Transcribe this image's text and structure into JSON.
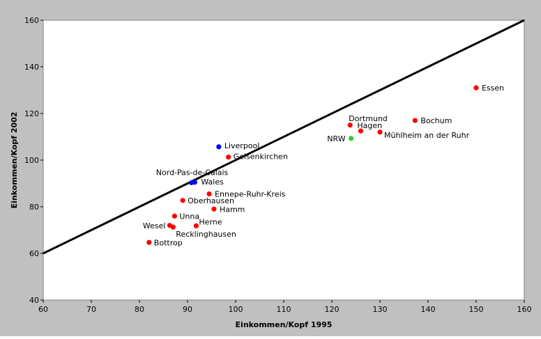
{
  "chart_data": {
    "type": "scatter",
    "xlabel": "Einkommen/Kopf 1995",
    "ylabel": "Einkommen/Kopf 2002",
    "xlim": [
      60,
      160
    ],
    "ylim": [
      40,
      160
    ],
    "xticks": [
      60,
      70,
      80,
      90,
      100,
      110,
      120,
      130,
      140,
      150,
      160
    ],
    "yticks": [
      40,
      60,
      80,
      100,
      120,
      140,
      160
    ],
    "grid": false,
    "colors": {
      "background": "#c0c0c0",
      "plot_area": "#ffffff",
      "red": "#ff0000",
      "blue": "#0000ff",
      "green": "#33cc33",
      "line": "#000000"
    },
    "reference_line": {
      "x": [
        60,
        160
      ],
      "y": [
        60,
        160
      ]
    },
    "points": [
      {
        "label": "Essen",
        "x": 150,
        "y": 131,
        "color": "red"
      },
      {
        "label": "Bochum",
        "x": 137.3,
        "y": 117,
        "color": "red"
      },
      {
        "label": "Dortmund",
        "x": 123.8,
        "y": 115,
        "color": "red"
      },
      {
        "label": "Hagen",
        "x": 126,
        "y": 112.5,
        "color": "red"
      },
      {
        "label": "Mühlheim an der Ruhr",
        "x": 130,
        "y": 112,
        "color": "red"
      },
      {
        "label": "NRW",
        "x": 124,
        "y": 109.3,
        "color": "green"
      },
      {
        "label": "Liverpool",
        "x": 96.5,
        "y": 105.7,
        "color": "blue"
      },
      {
        "label": "Gelsenkirchen",
        "x": 98.5,
        "y": 101.3,
        "color": "red"
      },
      {
        "label": "Nord-Pas-de-Calais",
        "x": 90.8,
        "y": 90.3,
        "color": "blue"
      },
      {
        "label": "Wales",
        "x": 91.5,
        "y": 90.5,
        "color": "blue"
      },
      {
        "label": "Ennepe-Ruhr-Kreis",
        "x": 94.5,
        "y": 85.5,
        "color": "red"
      },
      {
        "label": "Oberhausen",
        "x": 89,
        "y": 82.7,
        "color": "red"
      },
      {
        "label": "Hamm",
        "x": 95.5,
        "y": 79,
        "color": "red"
      },
      {
        "label": "Unna",
        "x": 87.3,
        "y": 76,
        "color": "red"
      },
      {
        "label": "Wesel",
        "x": 86.3,
        "y": 72,
        "color": "red"
      },
      {
        "label": "Recklinghausen",
        "x": 87,
        "y": 71.3,
        "color": "red"
      },
      {
        "label": "Herne",
        "x": 91.8,
        "y": 71.8,
        "color": "red"
      },
      {
        "label": "Bottrop",
        "x": 82,
        "y": 64.7,
        "color": "red"
      }
    ]
  }
}
